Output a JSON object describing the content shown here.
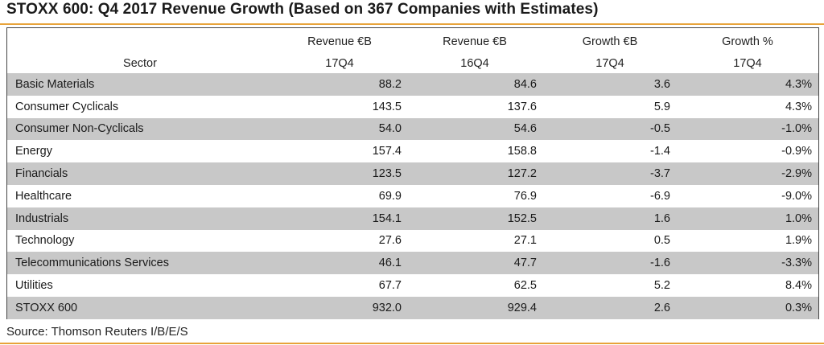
{
  "title": "STOXX 600: Q4 2017 Revenue Growth (Based on 367 Companies with Estimates)",
  "headers": {
    "row1": [
      "",
      "Revenue €B",
      "Revenue €B",
      "Growth €B",
      "Growth %"
    ],
    "row2": [
      "Sector",
      "17Q4",
      "16Q4",
      "17Q4",
      "17Q4"
    ]
  },
  "rows": [
    {
      "sector": "Basic Materials",
      "rev17": "88.2",
      "rev16": "84.6",
      "growth_eur": "3.6",
      "growth_pct": "4.3%"
    },
    {
      "sector": "Consumer Cyclicals",
      "rev17": "143.5",
      "rev16": "137.6",
      "growth_eur": "5.9",
      "growth_pct": "4.3%"
    },
    {
      "sector": "Consumer Non-Cyclicals",
      "rev17": "54.0",
      "rev16": "54.6",
      "growth_eur": "-0.5",
      "growth_pct": "-1.0%"
    },
    {
      "sector": "Energy",
      "rev17": "157.4",
      "rev16": "158.8",
      "growth_eur": "-1.4",
      "growth_pct": "-0.9%"
    },
    {
      "sector": "Financials",
      "rev17": "123.5",
      "rev16": "127.2",
      "growth_eur": "-3.7",
      "growth_pct": "-2.9%"
    },
    {
      "sector": "Healthcare",
      "rev17": "69.9",
      "rev16": "76.9",
      "growth_eur": "-6.9",
      "growth_pct": "-9.0%"
    },
    {
      "sector": "Industrials",
      "rev17": "154.1",
      "rev16": "152.5",
      "growth_eur": "1.6",
      "growth_pct": "1.0%"
    },
    {
      "sector": "Technology",
      "rev17": "27.6",
      "rev16": "27.1",
      "growth_eur": "0.5",
      "growth_pct": "1.9%"
    },
    {
      "sector": "Telecommunications Services",
      "rev17": "46.1",
      "rev16": "47.7",
      "growth_eur": "-1.6",
      "growth_pct": "-3.3%"
    },
    {
      "sector": "Utilities",
      "rev17": "67.7",
      "rev16": "62.5",
      "growth_eur": "5.2",
      "growth_pct": "8.4%"
    },
    {
      "sector": "STOXX 600",
      "rev17": "932.0",
      "rev16": "929.4",
      "growth_eur": "2.6",
      "growth_pct": "0.3%"
    }
  ],
  "source": "Source: Thomson Reuters I/B/E/S",
  "colors": {
    "accent_rule": "#e8a33a",
    "row_shade": "#c8c8c8"
  }
}
